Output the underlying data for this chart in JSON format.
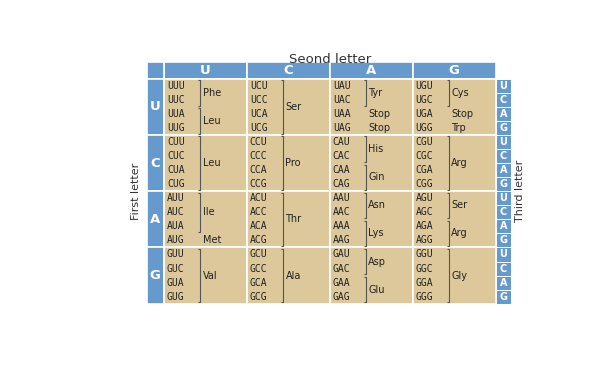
{
  "title": "Seond letter",
  "first_letter_label": "First letter",
  "third_letter_label": "Third letter",
  "second_letters": [
    "U",
    "C",
    "A",
    "G"
  ],
  "first_letters": [
    "U",
    "C",
    "A",
    "G"
  ],
  "third_letters": [
    "U",
    "C",
    "A",
    "G"
  ],
  "cell_bg": "#dcc89a",
  "header_bg": "#6699cc",
  "title_color": "#333333",
  "cells": [
    {
      "row": 0,
      "codons": [
        {
          "col": 0,
          "codon_lines": [
            "UUU",
            "UUC",
            "UUA",
            "UUG"
          ],
          "aa_groups": [
            [
              "Phe",
              2
            ],
            [
              "Leu",
              2
            ]
          ]
        },
        {
          "col": 1,
          "codon_lines": [
            "UCU",
            "UCC",
            "UCA",
            "UCG"
          ],
          "aa_groups": [
            [
              "Ser",
              4
            ]
          ]
        },
        {
          "col": 2,
          "codon_lines": [
            "UAU",
            "UAC",
            "UAA",
            "UAG"
          ],
          "aa_groups": [
            [
              "Tyr",
              2
            ],
            [
              "Stop",
              1
            ],
            [
              "Stop",
              1
            ]
          ]
        },
        {
          "col": 3,
          "codon_lines": [
            "UGU",
            "UGC",
            "UGA",
            "UGG"
          ],
          "aa_groups": [
            [
              "Cys",
              2
            ],
            [
              "Stop",
              1
            ],
            [
              "Trp",
              1
            ]
          ]
        }
      ]
    },
    {
      "row": 1,
      "codons": [
        {
          "col": 0,
          "codon_lines": [
            "CUU",
            "CUC",
            "CUA",
            "CUG"
          ],
          "aa_groups": [
            [
              "Leu",
              4
            ]
          ]
        },
        {
          "col": 1,
          "codon_lines": [
            "CCU",
            "CCC",
            "CCA",
            "CCG"
          ],
          "aa_groups": [
            [
              "Pro",
              4
            ]
          ]
        },
        {
          "col": 2,
          "codon_lines": [
            "CAU",
            "CAC",
            "CAA",
            "CAG"
          ],
          "aa_groups": [
            [
              "His",
              2
            ],
            [
              "Gin",
              2
            ]
          ]
        },
        {
          "col": 3,
          "codon_lines": [
            "CGU",
            "CGC",
            "CGA",
            "CGG"
          ],
          "aa_groups": [
            [
              "Arg",
              4
            ]
          ]
        }
      ]
    },
    {
      "row": 2,
      "codons": [
        {
          "col": 0,
          "codon_lines": [
            "AUU",
            "AUC",
            "AUA",
            "AUG"
          ],
          "aa_groups": [
            [
              "Ile",
              3
            ],
            [
              "Met",
              1
            ]
          ]
        },
        {
          "col": 1,
          "codon_lines": [
            "ACU",
            "ACC",
            "ACA",
            "ACG"
          ],
          "aa_groups": [
            [
              "Thr",
              4
            ]
          ]
        },
        {
          "col": 2,
          "codon_lines": [
            "AAU",
            "AAC",
            "AAA",
            "AAG"
          ],
          "aa_groups": [
            [
              "Asn",
              2
            ],
            [
              "Lys",
              2
            ]
          ]
        },
        {
          "col": 3,
          "codon_lines": [
            "AGU",
            "AGC",
            "AGA",
            "AGG"
          ],
          "aa_groups": [
            [
              "Ser",
              2
            ],
            [
              "Arg",
              2
            ]
          ]
        }
      ]
    },
    {
      "row": 3,
      "codons": [
        {
          "col": 0,
          "codon_lines": [
            "GUU",
            "GUC",
            "GUA",
            "GUG"
          ],
          "aa_groups": [
            [
              "Val",
              4
            ]
          ]
        },
        {
          "col": 1,
          "codon_lines": [
            "GCU",
            "GCC",
            "GCA",
            "GCG"
          ],
          "aa_groups": [
            [
              "Ala",
              4
            ]
          ]
        },
        {
          "col": 2,
          "codon_lines": [
            "GAU",
            "GAC",
            "GAA",
            "GAG"
          ],
          "aa_groups": [
            [
              "Asp",
              2
            ],
            [
              "Glu",
              2
            ]
          ]
        },
        {
          "col": 3,
          "codon_lines": [
            "GGU",
            "GGC",
            "GGA",
            "GGG"
          ],
          "aa_groups": [
            [
              "Gly",
              4
            ]
          ]
        }
      ]
    }
  ]
}
